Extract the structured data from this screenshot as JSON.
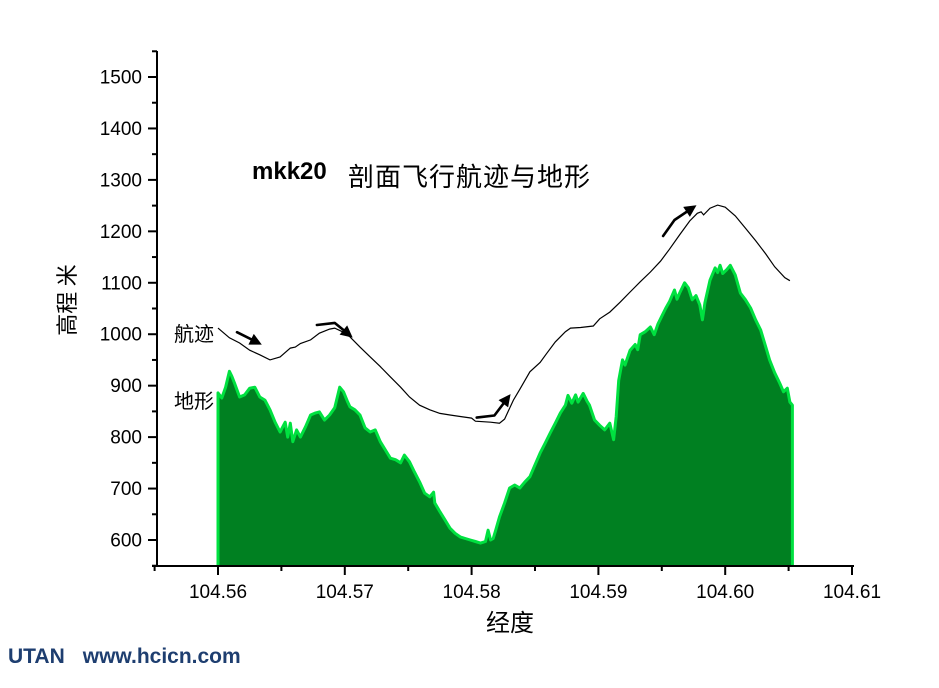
{
  "page": {
    "background": "#ffffff"
  },
  "footer": {
    "brand": "UTAN",
    "site": "www.hcicn.com",
    "color": "#1e3e70"
  },
  "chart_data": {
    "type": "area+line",
    "title_bold": "mkk20",
    "title": "剖面飞行航迹与地形",
    "xlabel": "经度",
    "ylabel": "高程 米",
    "xlim": [
      104.5552,
      104.61
    ],
    "ylim": [
      550,
      1547
    ],
    "grid": false,
    "legend_position": "floating-labels-left",
    "x_ticks": [
      {
        "value": 104.56,
        "label": "104.56"
      },
      {
        "value": 104.57,
        "label": "104.57"
      },
      {
        "value": 104.58,
        "label": "104.58"
      },
      {
        "value": 104.59,
        "label": "104.59"
      },
      {
        "value": 104.6,
        "label": "104.60"
      },
      {
        "value": 104.61,
        "label": "104.61"
      }
    ],
    "x_minor": [
      104.555,
      104.565,
      104.575,
      104.585,
      104.595,
      104.605
    ],
    "y_ticks": [
      {
        "value": 600,
        "label": "600"
      },
      {
        "value": 700,
        "label": "700"
      },
      {
        "value": 800,
        "label": "800"
      },
      {
        "value": 900,
        "label": "900"
      },
      {
        "value": 1000,
        "label": "1000"
      },
      {
        "value": 1100,
        "label": "1100"
      },
      {
        "value": 1200,
        "label": "1200"
      },
      {
        "value": 1300,
        "label": "1300"
      },
      {
        "value": 1400,
        "label": "1400"
      },
      {
        "value": 1500,
        "label": "1500"
      }
    ],
    "y_minor": [
      550,
      650,
      750,
      850,
      950,
      1050,
      1150,
      1250,
      1350,
      1450,
      1550
    ],
    "series": [
      {
        "name": "地形",
        "type": "area",
        "fill": "#008021",
        "edge": "#00e140",
        "points": [
          [
            104.56,
            886
          ],
          [
            104.5603,
            876
          ],
          [
            104.5606,
            897
          ],
          [
            104.5609,
            928
          ],
          [
            104.5611,
            918
          ],
          [
            104.5613,
            905
          ],
          [
            104.5617,
            878
          ],
          [
            104.5621,
            882
          ],
          [
            104.5625,
            895
          ],
          [
            104.5629,
            897
          ],
          [
            104.5633,
            878
          ],
          [
            104.5637,
            872
          ],
          [
            104.5641,
            853
          ],
          [
            104.5645,
            829
          ],
          [
            104.5649,
            810
          ],
          [
            104.5653,
            829
          ],
          [
            104.5655,
            800
          ],
          [
            104.5657,
            827
          ],
          [
            104.5659,
            791
          ],
          [
            104.5662,
            814
          ],
          [
            104.5665,
            800
          ],
          [
            104.5669,
            820
          ],
          [
            104.5673,
            843
          ],
          [
            104.5677,
            847
          ],
          [
            104.568,
            849
          ],
          [
            104.5684,
            833
          ],
          [
            104.5688,
            843
          ],
          [
            104.5692,
            857
          ],
          [
            104.5696,
            897
          ],
          [
            104.5699,
            888
          ],
          [
            104.5702,
            870
          ],
          [
            104.5704,
            859
          ],
          [
            104.5708,
            853
          ],
          [
            104.5712,
            843
          ],
          [
            104.5716,
            818
          ],
          [
            104.572,
            810
          ],
          [
            104.5724,
            814
          ],
          [
            104.5728,
            791
          ],
          [
            104.5732,
            775
          ],
          [
            104.5736,
            759
          ],
          [
            104.574,
            756
          ],
          [
            104.5744,
            750
          ],
          [
            104.5747,
            765
          ],
          [
            104.5751,
            752
          ],
          [
            104.5755,
            732
          ],
          [
            104.5759,
            713
          ],
          [
            104.5763,
            691
          ],
          [
            104.5767,
            684
          ],
          [
            104.577,
            693
          ],
          [
            104.5771,
            672
          ],
          [
            104.5775,
            655
          ],
          [
            104.5779,
            639
          ],
          [
            104.5783,
            623
          ],
          [
            104.5787,
            613
          ],
          [
            104.5791,
            606
          ],
          [
            104.5795,
            603
          ],
          [
            104.5799,
            600
          ],
          [
            104.5803,
            597
          ],
          [
            104.5807,
            594
          ],
          [
            104.5811,
            597
          ],
          [
            104.5813,
            619
          ],
          [
            104.5815,
            600
          ],
          [
            104.5817,
            603
          ],
          [
            104.5819,
            619
          ],
          [
            104.5822,
            645
          ],
          [
            104.5826,
            672
          ],
          [
            104.583,
            701
          ],
          [
            104.5834,
            707
          ],
          [
            104.5838,
            701
          ],
          [
            104.5842,
            713
          ],
          [
            104.5846,
            723
          ],
          [
            104.585,
            746
          ],
          [
            104.5854,
            769
          ],
          [
            104.5858,
            788
          ],
          [
            104.5862,
            808
          ],
          [
            104.5866,
            827
          ],
          [
            104.587,
            847
          ],
          [
            104.5874,
            862
          ],
          [
            104.5876,
            881
          ],
          [
            104.5879,
            866
          ],
          [
            104.5882,
            882
          ],
          [
            104.5884,
            868
          ],
          [
            104.5888,
            885
          ],
          [
            104.5891,
            870
          ],
          [
            104.5893,
            862
          ],
          [
            104.5897,
            833
          ],
          [
            104.5901,
            823
          ],
          [
            104.5905,
            814
          ],
          [
            104.5909,
            827
          ],
          [
            104.5912,
            795
          ],
          [
            104.5914,
            840
          ],
          [
            104.5916,
            910
          ],
          [
            104.5919,
            950
          ],
          [
            104.5921,
            940
          ],
          [
            104.5925,
            969
          ],
          [
            104.5929,
            980
          ],
          [
            104.5931,
            970
          ],
          [
            104.5933,
            999
          ],
          [
            104.5937,
            1005
          ],
          [
            104.5941,
            1014
          ],
          [
            104.5944,
            999
          ],
          [
            104.5947,
            1020
          ],
          [
            104.595,
            1035
          ],
          [
            104.5953,
            1050
          ],
          [
            104.5956,
            1063
          ],
          [
            104.596,
            1086
          ],
          [
            104.5962,
            1068
          ],
          [
            104.5964,
            1080
          ],
          [
            104.5968,
            1100
          ],
          [
            104.5971,
            1090
          ],
          [
            104.5974,
            1067
          ],
          [
            104.5977,
            1075
          ],
          [
            104.598,
            1057
          ],
          [
            104.5982,
            1028
          ],
          [
            104.5984,
            1061
          ],
          [
            104.5988,
            1105
          ],
          [
            104.5992,
            1129
          ],
          [
            104.5994,
            1120
          ],
          [
            104.5996,
            1134
          ],
          [
            104.5998,
            1118
          ],
          [
            104.6001,
            1125
          ],
          [
            104.6004,
            1134
          ],
          [
            104.6008,
            1115
          ],
          [
            104.6012,
            1080
          ],
          [
            104.6016,
            1067
          ],
          [
            104.602,
            1051
          ],
          [
            104.6024,
            1028
          ],
          [
            104.6028,
            1008
          ],
          [
            104.6032,
            975
          ],
          [
            104.6035,
            950
          ],
          [
            104.6039,
            925
          ],
          [
            104.6043,
            905
          ],
          [
            104.6046,
            888
          ],
          [
            104.6049,
            895
          ],
          [
            104.6051,
            868
          ],
          [
            104.6053,
            862
          ]
        ]
      },
      {
        "name": "航迹",
        "type": "line",
        "color": "#000000",
        "points": [
          [
            104.56,
            1012
          ],
          [
            104.5609,
            993
          ],
          [
            104.5617,
            983
          ],
          [
            104.5625,
            969
          ],
          [
            104.5633,
            960
          ],
          [
            104.5641,
            950
          ],
          [
            104.5649,
            956
          ],
          [
            104.5657,
            973
          ],
          [
            104.5661,
            975
          ],
          [
            104.5665,
            982
          ],
          [
            104.5673,
            989
          ],
          [
            104.568,
            1002
          ],
          [
            104.5688,
            1010
          ],
          [
            104.5692,
            1012
          ],
          [
            104.5698,
            1005
          ],
          [
            104.5704,
            995
          ],
          [
            104.5712,
            975
          ],
          [
            104.572,
            956
          ],
          [
            104.5728,
            937
          ],
          [
            104.5736,
            917
          ],
          [
            104.5744,
            897
          ],
          [
            104.5751,
            878
          ],
          [
            104.5759,
            862
          ],
          [
            104.5767,
            853
          ],
          [
            104.5775,
            846
          ],
          [
            104.5783,
            843
          ],
          [
            104.5791,
            840
          ],
          [
            104.58,
            837
          ],
          [
            104.5803,
            831
          ],
          [
            104.5815,
            829
          ],
          [
            104.5822,
            827
          ],
          [
            104.5826,
            835
          ],
          [
            104.5833,
            872
          ],
          [
            104.5838,
            893
          ],
          [
            104.5846,
            927
          ],
          [
            104.5854,
            945
          ],
          [
            104.5859,
            962
          ],
          [
            104.5866,
            985
          ],
          [
            104.5874,
            1005
          ],
          [
            104.5878,
            1012
          ],
          [
            104.5886,
            1013
          ],
          [
            104.5896,
            1016
          ],
          [
            104.5901,
            1030
          ],
          [
            104.5909,
            1043
          ],
          [
            104.5917,
            1062
          ],
          [
            104.5925,
            1082
          ],
          [
            104.5933,
            1102
          ],
          [
            104.5941,
            1121
          ],
          [
            104.5949,
            1142
          ],
          [
            104.5956,
            1165
          ],
          [
            104.5964,
            1193
          ],
          [
            104.5972,
            1220
          ],
          [
            104.5978,
            1235
          ],
          [
            104.5981,
            1238
          ],
          [
            104.5983,
            1232
          ],
          [
            104.5988,
            1245
          ],
          [
            104.5994,
            1251
          ],
          [
            104.6,
            1247
          ],
          [
            104.6008,
            1230
          ],
          [
            104.6016,
            1206
          ],
          [
            104.6024,
            1182
          ],
          [
            104.6032,
            1156
          ],
          [
            104.6039,
            1131
          ],
          [
            104.6047,
            1110
          ],
          [
            104.6051,
            1104
          ]
        ]
      }
    ],
    "annotations": {
      "arrows": [
        {
          "points": [
            [
              104.5615,
              1004
            ],
            [
              104.5632,
              983
            ]
          ]
        },
        {
          "points": [
            [
              104.5678,
              1018
            ],
            [
              104.5692,
              1022
            ],
            [
              104.5704,
              998
            ]
          ]
        },
        {
          "points": [
            [
              104.5804,
              838
            ],
            [
              104.5818,
              842
            ],
            [
              104.5829,
              878
            ]
          ]
        },
        {
          "points": [
            [
              104.5951,
              1191
            ],
            [
              104.596,
              1222
            ],
            [
              104.5975,
              1247
            ]
          ]
        }
      ]
    }
  }
}
